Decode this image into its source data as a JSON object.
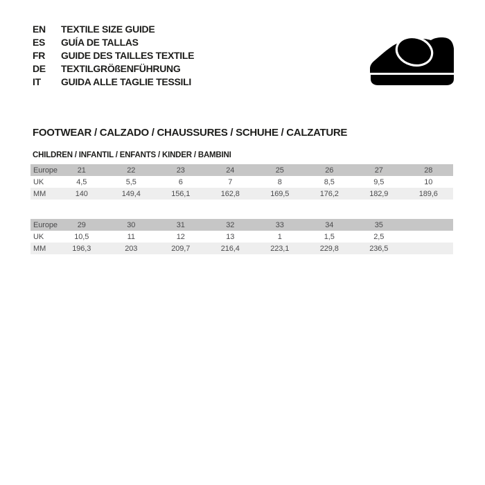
{
  "page": {
    "background": "#ffffff"
  },
  "languages": [
    {
      "code": "EN",
      "text": "TEXTILE SIZE GUIDE"
    },
    {
      "code": "ES",
      "text": "GUÍA DE TALLAS"
    },
    {
      "code": "FR",
      "text": "GUIDE DES TAILLES TEXTILE"
    },
    {
      "code": "DE",
      "text": "TEXTILGRÖßENFÜHRUNG"
    },
    {
      "code": "IT",
      "text": "GUIDA ALLE TAGLIE TESSILI"
    }
  ],
  "icon": {
    "name": "children-shoe-icon",
    "color": "#000000"
  },
  "section": {
    "title": "FOOTWEAR / CALZADO / CHAUSSURES / SCHUHE / CALZATURE",
    "subtitle": "CHILDREN / INFANTIL / ENFANTS / KINDER / BAMBINI"
  },
  "colors": {
    "heading_text": "#1d1d1b",
    "table_text": "#4b4b4d",
    "header_row_bg": "#c6c6c6",
    "mm_row_bg": "#eeeeee"
  },
  "tables": [
    {
      "rows": [
        {
          "label": "Europe",
          "values": [
            "21",
            "22",
            "23",
            "24",
            "25",
            "26",
            "27",
            "28"
          ]
        },
        {
          "label": "UK",
          "values": [
            "4,5",
            "5,5",
            "6",
            "7",
            "8",
            "8,5",
            "9,5",
            "10"
          ]
        },
        {
          "label": "MM",
          "values": [
            "140",
            "149,4",
            "156,1",
            "162,8",
            "169,5",
            "176,2",
            "182,9",
            "189,6"
          ]
        }
      ]
    },
    {
      "rows": [
        {
          "label": "Europe",
          "values": [
            "29",
            "30",
            "31",
            "32",
            "33",
            "34",
            "35",
            ""
          ]
        },
        {
          "label": "UK",
          "values": [
            "10,5",
            "11",
            "12",
            "13",
            "1",
            "1,5",
            "2,5",
            ""
          ]
        },
        {
          "label": "MM",
          "values": [
            "196,3",
            "203",
            "209,7",
            "216,4",
            "223,1",
            "229,8",
            "236,5",
            ""
          ]
        }
      ]
    }
  ]
}
